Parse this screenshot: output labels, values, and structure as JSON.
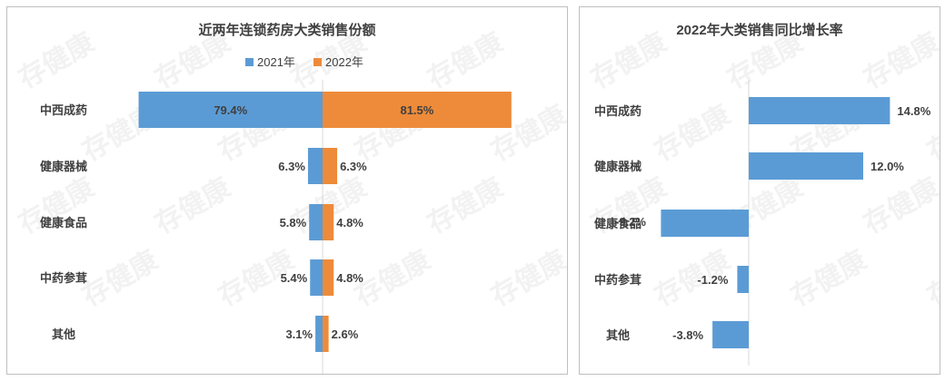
{
  "watermark": "存健康",
  "colors": {
    "blue": "#5b9bd5",
    "orange": "#ed8b3a",
    "axis": "#d9d9d9",
    "text": "#404040"
  },
  "chart_data": [
    {
      "type": "bar",
      "orientation": "horizontal-butterfly",
      "title": "近两年连锁药房大类销售份额",
      "categories": [
        "中西成药",
        "健康器械",
        "健康食品",
        "中药参茸",
        "其他"
      ],
      "series": [
        {
          "name": "2021年",
          "values": [
            79.4,
            6.3,
            5.8,
            5.4,
            3.1
          ],
          "labels": [
            "79.4%",
            "6.3%",
            "5.8%",
            "5.4%",
            "3.1%"
          ]
        },
        {
          "name": "2022年",
          "values": [
            81.5,
            6.3,
            4.8,
            4.8,
            2.6
          ],
          "labels": [
            "81.5%",
            "6.3%",
            "4.8%",
            "4.8%",
            "2.6%"
          ]
        }
      ],
      "legend": "top",
      "grid": false
    },
    {
      "type": "bar",
      "orientation": "horizontal",
      "title": "2022年大类销售同比增长率",
      "categories": [
        "中西成药",
        "健康器械",
        "健康食品",
        "中药参茸",
        "其他"
      ],
      "values": [
        14.8,
        12.0,
        -9.2,
        -1.2,
        -3.8
      ],
      "labels": [
        "14.8%",
        "12.0%",
        "-9.2%",
        "-1.2%",
        "-3.8%"
      ],
      "grid": false
    }
  ]
}
